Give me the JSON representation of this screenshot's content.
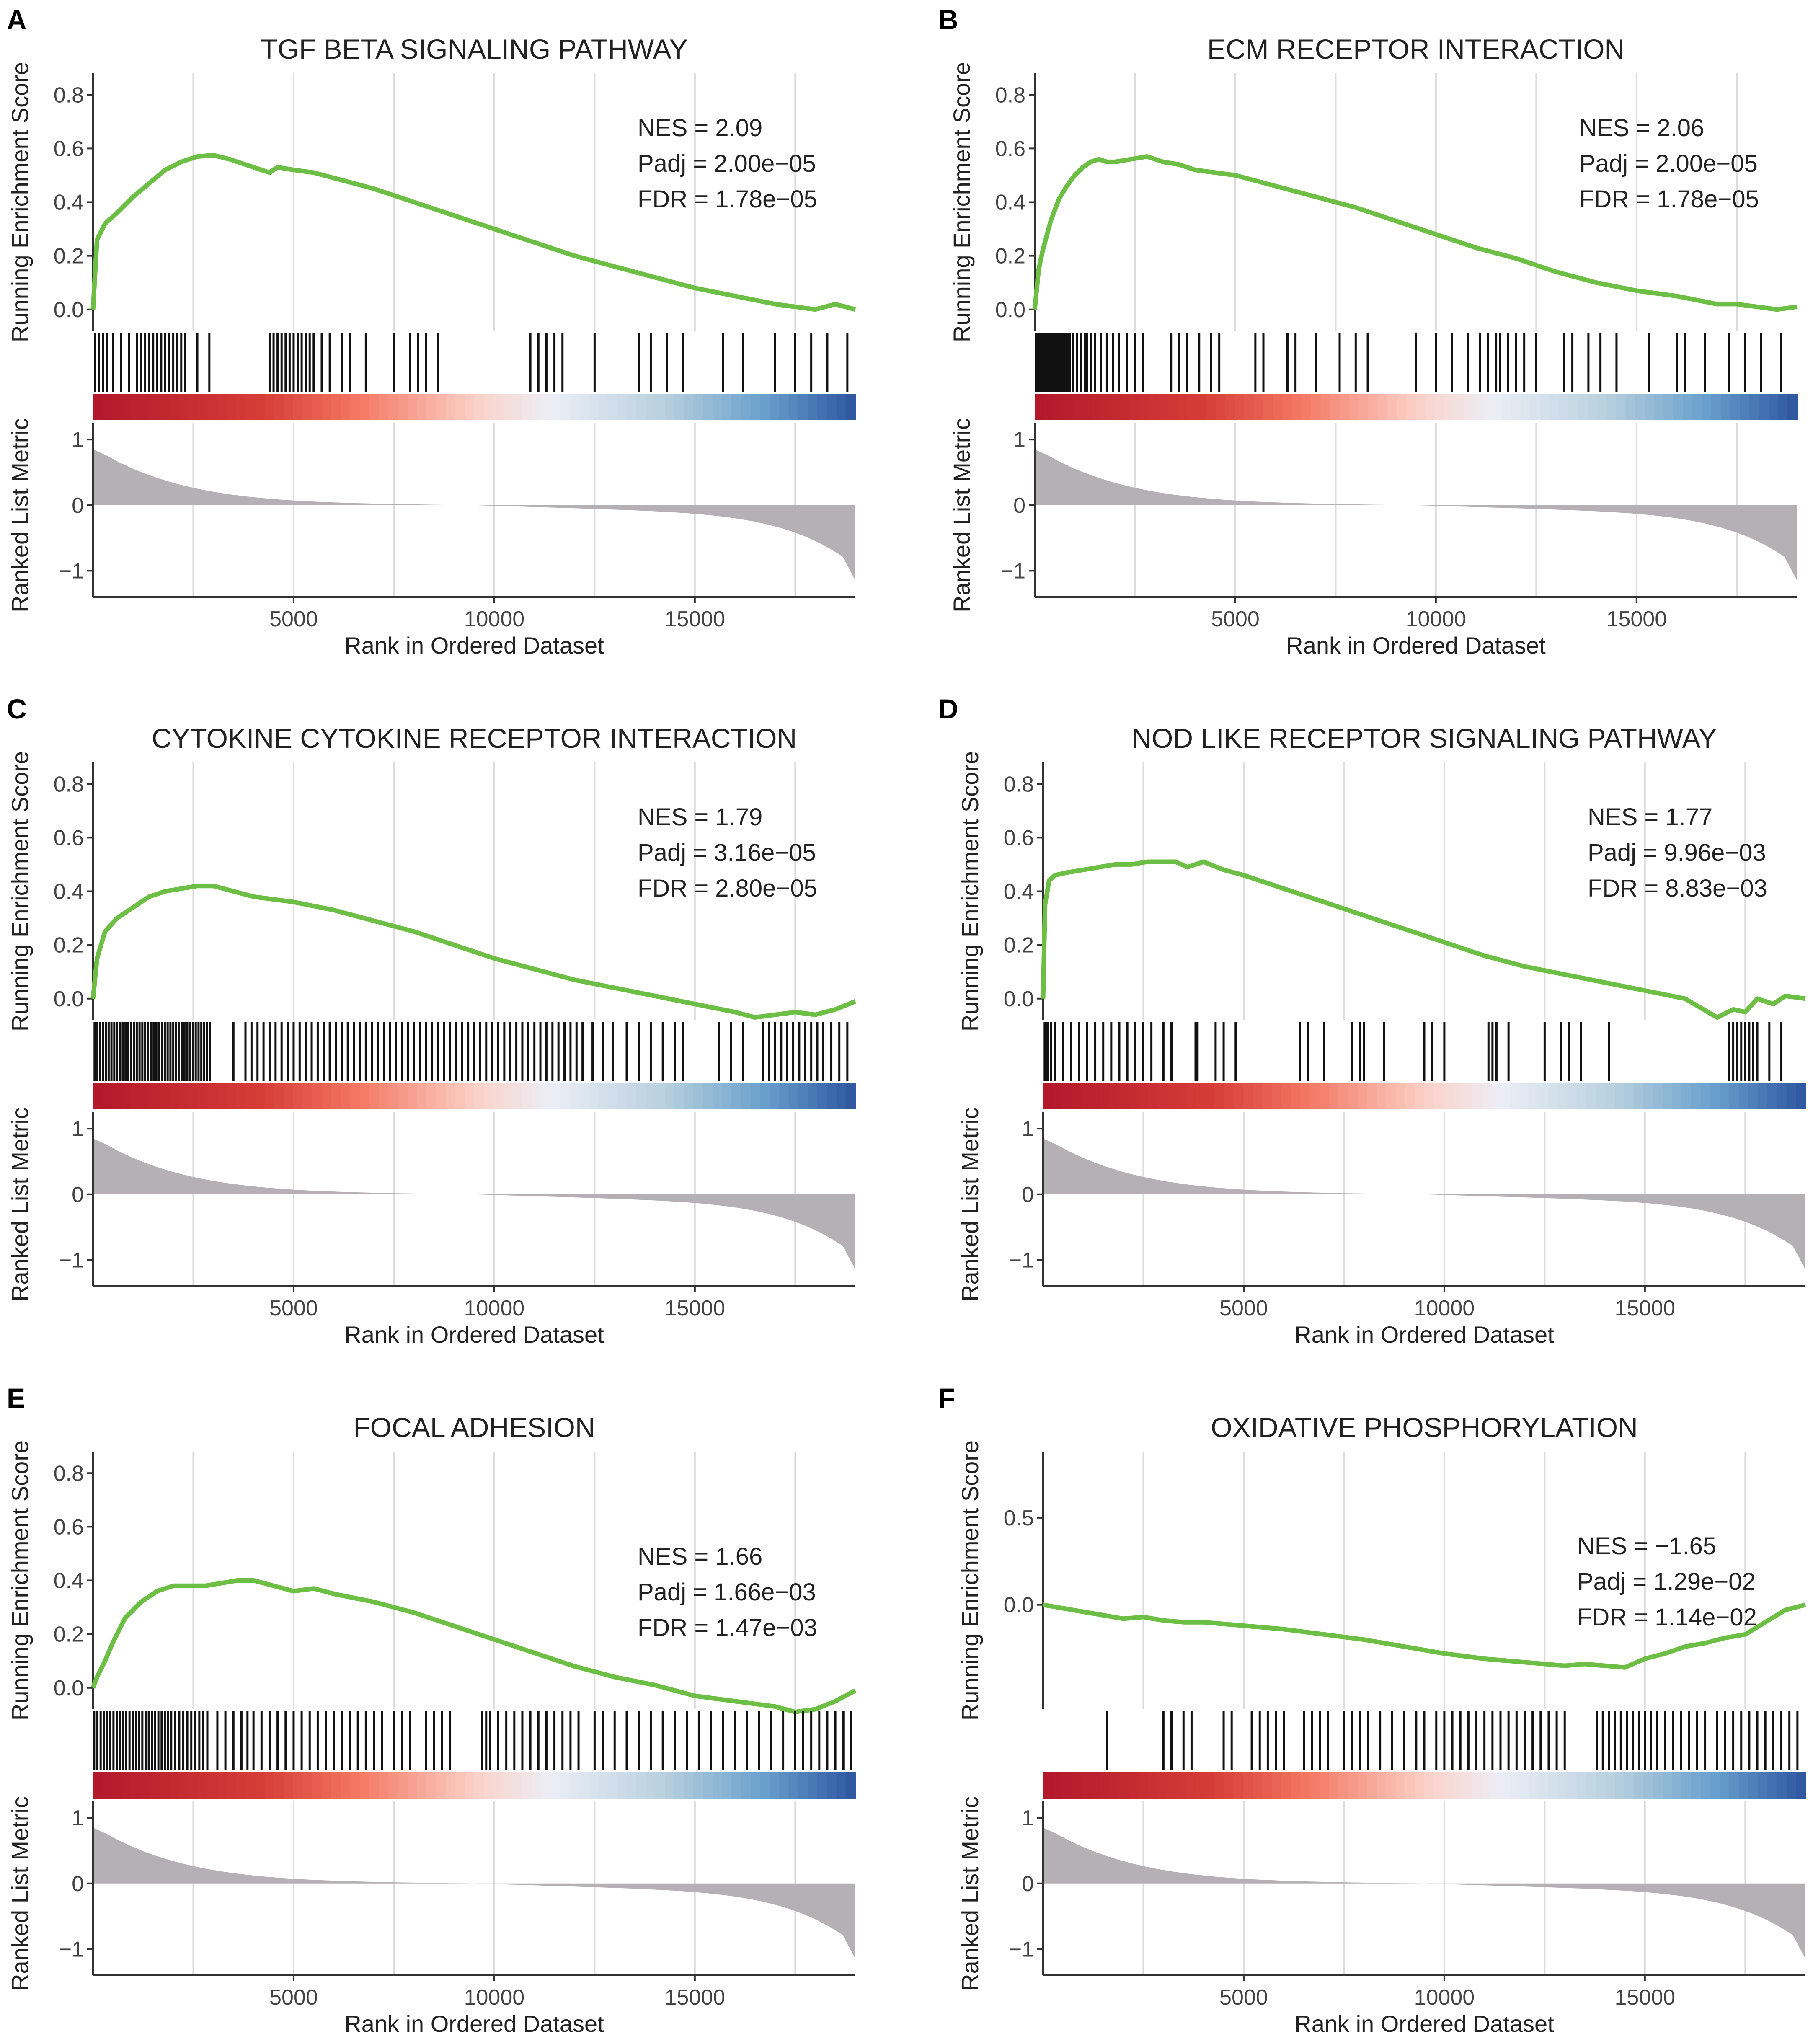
{
  "figure": {
    "y_label_top": "Running Enrichment Score",
    "y_label_bottom": "Ranked List Metric",
    "x_label": "Rank in Ordered Dataset",
    "x_ticks": [
      "5000",
      "10000",
      "15000"
    ],
    "metric_ticks": [
      "1",
      "0",
      "−1"
    ],
    "colors": {
      "curve": "#6dbe45",
      "ticks": "#111111",
      "grid": "#dcdcdc",
      "metric_fill": "#b5b0b3",
      "axis": "#333333"
    }
  },
  "chart_data": [
    {
      "type": "line",
      "panel": "A",
      "title": "TGF BETA SIGNALING PATHWAY",
      "stats": {
        "nes": "NES = 2.09",
        "padj": "Padj = 2.00e−05",
        "fdr": "FDR = 1.78e−05"
      },
      "xlabel": "Rank in Ordered Dataset",
      "ylabel": "Running Enrichment Score",
      "xlim": [
        0,
        19000
      ],
      "ylim": [
        -0.08,
        0.88
      ],
      "y_ticks": [
        "0.0",
        "0.2",
        "0.4",
        "0.6",
        "0.8"
      ],
      "x": [
        0,
        100,
        300,
        600,
        1000,
        1400,
        1800,
        2200,
        2600,
        3000,
        3400,
        3800,
        4200,
        4400,
        4600,
        5000,
        5500,
        6000,
        7000,
        8000,
        9000,
        10000,
        11000,
        12000,
        13000,
        14000,
        15000,
        16000,
        17000,
        17500,
        18000,
        18500,
        19000
      ],
      "y": [
        0.0,
        0.26,
        0.32,
        0.36,
        0.42,
        0.47,
        0.52,
        0.55,
        0.57,
        0.575,
        0.56,
        0.54,
        0.52,
        0.51,
        0.53,
        0.52,
        0.51,
        0.49,
        0.45,
        0.4,
        0.35,
        0.3,
        0.25,
        0.2,
        0.16,
        0.12,
        0.08,
        0.05,
        0.02,
        0.01,
        0.0,
        0.02,
        0.0
      ],
      "hits": [
        50,
        150,
        250,
        350,
        500,
        700,
        900,
        1100,
        1200,
        1300,
        1400,
        1500,
        1600,
        1700,
        1800,
        1900,
        2000,
        2100,
        2200,
        2300,
        2600,
        2900,
        4400,
        4500,
        4600,
        4700,
        4800,
        4900,
        5000,
        5100,
        5200,
        5300,
        5400,
        5500,
        5700,
        5900,
        6200,
        6400,
        6800,
        7500,
        7900,
        8100,
        8300,
        8600,
        10900,
        11100,
        11300,
        11500,
        11700,
        12500,
        13600,
        13900,
        14300,
        14700,
        15700,
        16200,
        17000,
        17500,
        17900,
        18300,
        18800
      ]
    },
    {
      "type": "line",
      "panel": "B",
      "title": "ECM RECEPTOR INTERACTION",
      "stats": {
        "nes": "NES = 2.06",
        "padj": "Padj = 2.00e−05",
        "fdr": "FDR = 1.78e−05"
      },
      "xlabel": "Rank in Ordered Dataset",
      "ylabel": "Running Enrichment Score",
      "xlim": [
        0,
        19000
      ],
      "ylim": [
        -0.08,
        0.88
      ],
      "y_ticks": [
        "0.0",
        "0.2",
        "0.4",
        "0.6",
        "0.8"
      ],
      "x": [
        0,
        100,
        200,
        400,
        600,
        800,
        1000,
        1200,
        1400,
        1600,
        1800,
        2000,
        2400,
        2800,
        3200,
        3600,
        4000,
        4500,
        5000,
        6000,
        7000,
        8000,
        9000,
        10000,
        11000,
        12000,
        13000,
        14000,
        15000,
        16000,
        17000,
        17500,
        18000,
        18500,
        19000
      ],
      "y": [
        0.0,
        0.15,
        0.22,
        0.33,
        0.41,
        0.46,
        0.5,
        0.53,
        0.55,
        0.56,
        0.55,
        0.55,
        0.56,
        0.57,
        0.55,
        0.54,
        0.52,
        0.51,
        0.5,
        0.46,
        0.42,
        0.38,
        0.33,
        0.28,
        0.23,
        0.19,
        0.14,
        0.1,
        0.07,
        0.05,
        0.02,
        0.02,
        0.01,
        0.0,
        0.01
      ],
      "hits": [
        30,
        80,
        130,
        180,
        230,
        280,
        330,
        380,
        430,
        480,
        530,
        580,
        630,
        680,
        730,
        780,
        830,
        880,
        950,
        1050,
        1150,
        1250,
        1300,
        1400,
        1500,
        1650,
        1800,
        1950,
        2100,
        2300,
        2500,
        2700,
        3400,
        3600,
        3800,
        4100,
        4400,
        4600,
        5500,
        5700,
        6300,
        6500,
        7000,
        7600,
        8000,
        8300,
        9500,
        10000,
        10400,
        10800,
        11100,
        11300,
        11500,
        11600,
        11800,
        12000,
        12200,
        12500,
        13200,
        13400,
        13800,
        14100,
        14500,
        15300,
        16000,
        16200,
        16700,
        17300,
        17700,
        18100,
        18600
      ]
    },
    {
      "type": "line",
      "panel": "C",
      "title": "CYTOKINE CYTOKINE RECEPTOR INTERACTION",
      "stats": {
        "nes": "NES = 1.79",
        "padj": "Padj = 3.16e−05",
        "fdr": "FDR = 2.80e−05"
      },
      "xlabel": "Rank in Ordered Dataset",
      "ylabel": "Running Enrichment Score",
      "xlim": [
        0,
        19000
      ],
      "ylim": [
        -0.08,
        0.88
      ],
      "y_ticks": [
        "0.0",
        "0.2",
        "0.4",
        "0.6",
        "0.8"
      ],
      "x": [
        0,
        100,
        300,
        600,
        1000,
        1400,
        1800,
        2200,
        2600,
        3000,
        3500,
        4000,
        4500,
        5000,
        6000,
        7000,
        8000,
        9000,
        10000,
        11000,
        12000,
        13000,
        14000,
        15000,
        16000,
        16500,
        17000,
        17500,
        18000,
        18500,
        19000
      ],
      "y": [
        0.0,
        0.15,
        0.25,
        0.3,
        0.34,
        0.38,
        0.4,
        0.41,
        0.42,
        0.42,
        0.4,
        0.38,
        0.37,
        0.36,
        0.33,
        0.29,
        0.25,
        0.2,
        0.15,
        0.11,
        0.07,
        0.04,
        0.01,
        -0.02,
        -0.05,
        -0.07,
        -0.06,
        -0.05,
        -0.06,
        -0.04,
        -0.01
      ],
      "hits": [
        40,
        110,
        180,
        250,
        320,
        390,
        460,
        530,
        600,
        670,
        740,
        810,
        880,
        950,
        1020,
        1090,
        1160,
        1230,
        1300,
        1370,
        1440,
        1510,
        1580,
        1650,
        1720,
        1790,
        1860,
        1930,
        2000,
        2070,
        2140,
        2210,
        2280,
        2350,
        2420,
        2490,
        2560,
        2630,
        2700,
        2770,
        2840,
        2910,
        3500,
        3800,
        3950,
        4100,
        4250,
        4400,
        4550,
        4700,
        4850,
        5000,
        5150,
        5300,
        5450,
        5600,
        5750,
        5900,
        6050,
        6200,
        6350,
        6500,
        6650,
        6800,
        6950,
        7100,
        7250,
        7400,
        7550,
        7700,
        7850,
        8000,
        8150,
        8300,
        8450,
        8600,
        8750,
        8900,
        9050,
        9200,
        9350,
        9500,
        9650,
        9800,
        9950,
        10100,
        10250,
        10400,
        10550,
        10700,
        10850,
        11000,
        11150,
        11300,
        11450,
        11600,
        11750,
        11900,
        12050,
        12200,
        12450,
        12700,
        12950,
        13300,
        13600,
        13900,
        14200,
        14500,
        14700,
        15600,
        15900,
        16200,
        16700,
        16850,
        17000,
        17150,
        17300,
        17450,
        17600,
        17750,
        17900,
        18050,
        18200,
        18400,
        18600,
        18800
      ]
    },
    {
      "type": "line",
      "panel": "D",
      "title": "NOD LIKE RECEPTOR SIGNALING PATHWAY",
      "stats": {
        "nes": "NES = 1.77",
        "padj": "Padj = 9.96e−03",
        "fdr": "FDR = 8.83e−03"
      },
      "xlabel": "Rank in Ordered Dataset",
      "ylabel": "Running Enrichment Score",
      "xlim": [
        0,
        19000
      ],
      "ylim": [
        -0.08,
        0.88
      ],
      "y_ticks": [
        "0.0",
        "0.2",
        "0.4",
        "0.6",
        "0.8"
      ],
      "x": [
        0,
        50,
        150,
        300,
        600,
        1000,
        1400,
        1800,
        2200,
        2600,
        3000,
        3300,
        3600,
        4000,
        4500,
        5000,
        6000,
        7000,
        8000,
        9000,
        10000,
        11000,
        12000,
        13000,
        14000,
        15000,
        16000,
        16800,
        17200,
        17500,
        17800,
        18200,
        18500,
        19000
      ],
      "y": [
        0.0,
        0.35,
        0.44,
        0.46,
        0.47,
        0.48,
        0.49,
        0.5,
        0.5,
        0.51,
        0.51,
        0.51,
        0.49,
        0.51,
        0.48,
        0.46,
        0.41,
        0.36,
        0.31,
        0.26,
        0.21,
        0.16,
        0.12,
        0.09,
        0.06,
        0.03,
        0.0,
        -0.07,
        -0.04,
        -0.05,
        0.0,
        -0.02,
        0.01,
        0.0
      ],
      "hits": [
        40,
        80,
        120,
        200,
        300,
        500,
        700,
        900,
        1100,
        1300,
        1500,
        1700,
        1900,
        2100,
        2300,
        2500,
        2700,
        3000,
        3200,
        3800,
        3850,
        4300,
        4500,
        4800,
        6400,
        6600,
        7000,
        7700,
        7900,
        8000,
        8500,
        9500,
        9700,
        10000,
        11100,
        11200,
        11300,
        11600,
        12500,
        12900,
        13100,
        13400,
        14100,
        17100,
        17200,
        17300,
        17400,
        17500,
        17600,
        17700,
        17800,
        18100,
        18400
      ]
    },
    {
      "type": "line",
      "panel": "E",
      "title": "FOCAL ADHESION",
      "stats": {
        "nes": "NES = 1.66",
        "padj": "Padj = 1.66e−03",
        "fdr": "FDR = 1.47e−03"
      },
      "xlabel": "Rank in Ordered Dataset",
      "ylabel": "Running Enrichment Score",
      "xlim": [
        0,
        19000
      ],
      "ylim": [
        -0.08,
        0.88
      ],
      "y_ticks": [
        "0.0",
        "0.2",
        "0.4",
        "0.6",
        "0.8"
      ],
      "x": [
        0,
        100,
        300,
        500,
        800,
        1200,
        1600,
        2000,
        2400,
        2800,
        3200,
        3600,
        4000,
        4500,
        5000,
        5500,
        6000,
        7000,
        8000,
        9000,
        10000,
        11000,
        12000,
        13000,
        14000,
        15000,
        16000,
        17000,
        17500,
        18000,
        18500,
        19000
      ],
      "y": [
        0.0,
        0.04,
        0.1,
        0.17,
        0.26,
        0.32,
        0.36,
        0.38,
        0.38,
        0.38,
        0.39,
        0.4,
        0.4,
        0.38,
        0.36,
        0.37,
        0.35,
        0.32,
        0.28,
        0.23,
        0.18,
        0.13,
        0.08,
        0.04,
        0.01,
        -0.03,
        -0.05,
        -0.07,
        -0.09,
        -0.08,
        -0.05,
        -0.01
      ],
      "hits": [
        30,
        110,
        190,
        270,
        350,
        430,
        510,
        590,
        670,
        750,
        830,
        910,
        990,
        1070,
        1150,
        1230,
        1310,
        1390,
        1470,
        1550,
        1630,
        1710,
        1790,
        1870,
        1950,
        2050,
        2150,
        2250,
        2350,
        2450,
        2550,
        2650,
        2750,
        2850,
        3100,
        3300,
        3500,
        3700,
        3850,
        4000,
        4200,
        4400,
        4600,
        4800,
        5000,
        5200,
        5400,
        5600,
        5800,
        6000,
        6200,
        6400,
        6600,
        6800,
        7000,
        7200,
        7500,
        7700,
        7900,
        8300,
        8500,
        8700,
        8900,
        9700,
        9800,
        9900,
        10100,
        10300,
        10500,
        10700,
        10900,
        11100,
        11300,
        11500,
        11700,
        11900,
        12100,
        12500,
        12700,
        13000,
        13300,
        13600,
        13900,
        14200,
        14500,
        14800,
        15100,
        15400,
        15700,
        16000,
        16300,
        16600,
        16900,
        17200,
        17500,
        17700,
        17900,
        18100,
        18300,
        18500,
        18700,
        18900
      ]
    },
    {
      "type": "line",
      "panel": "F",
      "title": "OXIDATIVE PHOSPHORYLATION",
      "stats": {
        "nes": "NES = −1.65",
        "padj": "Padj = 1.29e−02",
        "fdr": "FDR = 1.14e−02"
      },
      "xlabel": "Rank in Ordered Dataset",
      "ylabel": "Running Enrichment Score",
      "xlim": [
        0,
        19000
      ],
      "ylim": [
        -0.6,
        0.88
      ],
      "y_ticks": [
        "0.0",
        "0.5"
      ],
      "x": [
        0,
        500,
        1000,
        1500,
        2000,
        2500,
        3000,
        3500,
        4000,
        4500,
        5000,
        5500,
        6000,
        7000,
        8000,
        9000,
        10000,
        11000,
        12000,
        13000,
        13500,
        14000,
        14500,
        15000,
        15500,
        16000,
        16500,
        17000,
        17500,
        18000,
        18500,
        19000
      ],
      "y": [
        0.0,
        -0.02,
        -0.04,
        -0.06,
        -0.08,
        -0.07,
        -0.09,
        -0.1,
        -0.1,
        -0.11,
        -0.12,
        -0.13,
        -0.14,
        -0.17,
        -0.2,
        -0.24,
        -0.28,
        -0.31,
        -0.33,
        -0.35,
        -0.34,
        -0.35,
        -0.36,
        -0.31,
        -0.28,
        -0.24,
        -0.22,
        -0.19,
        -0.17,
        -0.1,
        -0.03,
        0.0
      ],
      "hits": [
        1600,
        3000,
        3200,
        3500,
        3700,
        4500,
        4700,
        5200,
        5400,
        5600,
        5800,
        6000,
        6500,
        6700,
        6900,
        7100,
        7500,
        7700,
        7900,
        8100,
        8400,
        8700,
        9000,
        9300,
        9500,
        9800,
        10000,
        10200,
        10400,
        10600,
        10800,
        11000,
        11200,
        11400,
        11600,
        11800,
        12000,
        12200,
        12400,
        12600,
        12800,
        13000,
        13800,
        13950,
        14100,
        14250,
        14400,
        14550,
        14700,
        14850,
        15000,
        15150,
        15300,
        15500,
        15700,
        15900,
        16100,
        16300,
        16500,
        16800,
        17000,
        17200,
        17400,
        17600,
        17800,
        18000,
        18200,
        18400,
        18600,
        18800
      ]
    }
  ]
}
